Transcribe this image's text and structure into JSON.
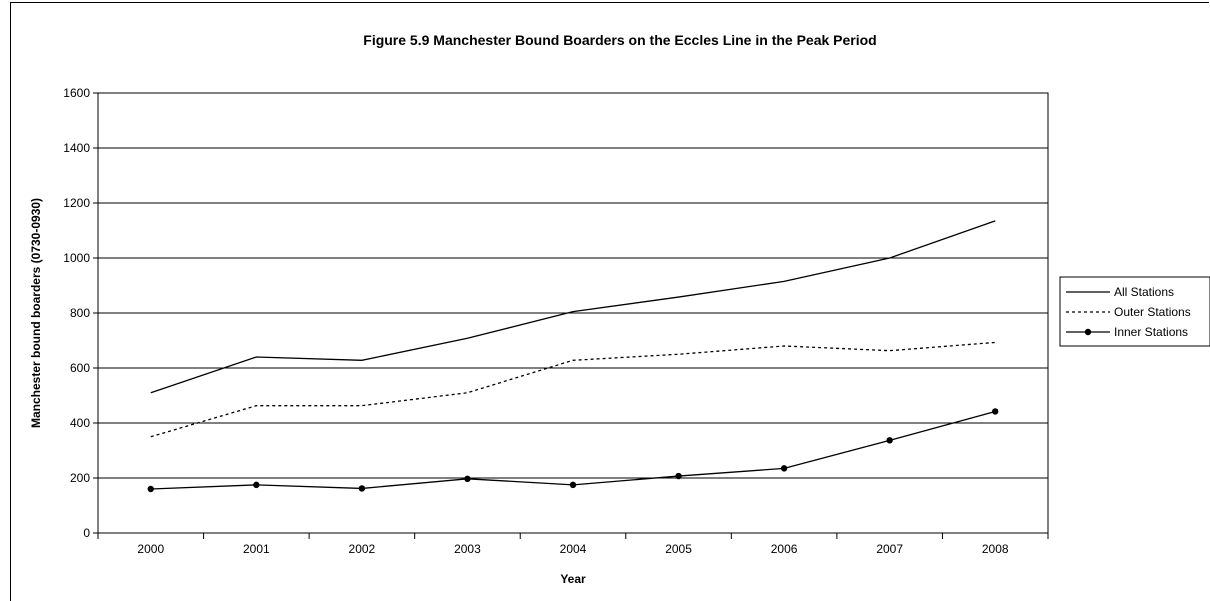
{
  "chart_data": {
    "type": "line",
    "title": "Figure 5.9 Manchester Bound Boarders on the Eccles Line in the Peak Period",
    "xlabel": "Year",
    "ylabel": "Manchester bound boarders (0730-0930)",
    "categories": [
      "2000",
      "2001",
      "2002",
      "2003",
      "2004",
      "2005",
      "2006",
      "2007",
      "2008"
    ],
    "ylim": [
      0,
      1600
    ],
    "yticks": [
      "0",
      "200",
      "400",
      "600",
      "800",
      "1000",
      "1200",
      "1400",
      "1600"
    ],
    "grid": "horizontal",
    "legend_position": "right",
    "series": [
      {
        "name": "All Stations",
        "style": "solid",
        "marker": "none",
        "values": [
          510,
          640,
          628,
          708,
          805,
          858,
          915,
          1000,
          1135
        ]
      },
      {
        "name": "Outer Stations",
        "style": "dotted",
        "marker": "none",
        "values": [
          350,
          463,
          463,
          510,
          628,
          650,
          680,
          663,
          693
        ]
      },
      {
        "name": "Inner Stations",
        "style": "solid",
        "marker": "circle",
        "values": [
          160,
          175,
          162,
          197,
          175,
          207,
          235,
          337,
          442
        ]
      }
    ]
  },
  "colors": {
    "line": "#000000",
    "grid": "#000000",
    "background": "#ffffff"
  }
}
